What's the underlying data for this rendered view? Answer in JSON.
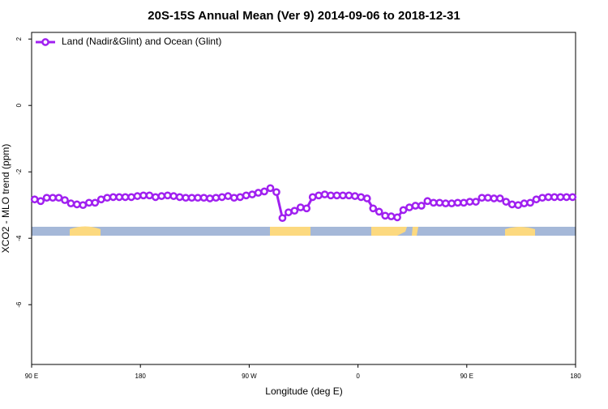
{
  "chart_data": {
    "type": "line",
    "title": "20S-15S Annual Mean (Ver 9)   2014-09-06 to 2018-12-31",
    "x_label": "Longitude (deg E)",
    "y_label": "XCO2 - MLO trend (ppm)",
    "legend_position": "top-left",
    "xlim": [
      90,
      540
    ],
    "xticks": [
      {
        "value": 90,
        "label": "90 E"
      },
      {
        "value": 180,
        "label": "180"
      },
      {
        "value": 270,
        "label": "90 W"
      },
      {
        "value": 360,
        "label": "0"
      },
      {
        "value": 450,
        "label": "90 E"
      },
      {
        "value": 540,
        "label": "180"
      }
    ],
    "ylim": [
      -7.8,
      2.2
    ],
    "yticks": [
      2,
      0,
      -2,
      -4,
      -6
    ],
    "x": [
      92.5,
      97.5,
      102.5,
      107.5,
      112.5,
      117.5,
      122.5,
      127.5,
      132.5,
      137.5,
      142.5,
      147.5,
      152.5,
      157.5,
      162.5,
      167.5,
      172.5,
      177.5,
      182.5,
      187.5,
      192.5,
      197.5,
      202.5,
      207.5,
      212.5,
      217.5,
      222.5,
      227.5,
      232.5,
      237.5,
      242.5,
      247.5,
      252.5,
      257.5,
      262.5,
      267.5,
      272.5,
      277.5,
      282.5,
      287.5,
      292.5,
      297.5,
      302.5,
      307.5,
      312.5,
      317.5,
      322.5,
      327.5,
      332.5,
      337.5,
      342.5,
      347.5,
      352.5,
      357.5,
      362.5,
      367.5,
      372.5,
      377.5,
      382.5,
      387.5,
      392.5,
      397.5,
      402.5,
      407.5,
      412.5,
      417.5,
      422.5,
      427.5,
      432.5,
      437.5,
      442.5,
      447.5,
      452.5,
      457.5,
      462.5,
      467.5,
      472.5,
      477.5,
      482.5,
      487.5,
      492.5,
      497.5,
      502.5,
      507.5,
      512.5,
      517.5,
      522.5,
      527.5,
      532.5,
      537.5
    ],
    "series": [
      {
        "name": "Land (Nadir&Glint) and Ocean (Glint)",
        "color": "#a020f0",
        "values": [
          -2.83,
          -2.88,
          -2.78,
          -2.78,
          -2.78,
          -2.85,
          -2.95,
          -2.98,
          -3.0,
          -2.93,
          -2.93,
          -2.83,
          -2.78,
          -2.76,
          -2.76,
          -2.76,
          -2.76,
          -2.73,
          -2.71,
          -2.71,
          -2.76,
          -2.73,
          -2.71,
          -2.73,
          -2.76,
          -2.78,
          -2.78,
          -2.78,
          -2.78,
          -2.8,
          -2.78,
          -2.76,
          -2.73,
          -2.78,
          -2.76,
          -2.71,
          -2.68,
          -2.63,
          -2.59,
          -2.49,
          -2.61,
          -3.39,
          -3.22,
          -3.17,
          -3.07,
          -3.1,
          -2.76,
          -2.71,
          -2.68,
          -2.71,
          -2.71,
          -2.71,
          -2.71,
          -2.73,
          -2.76,
          -2.8,
          -3.1,
          -3.2,
          -3.32,
          -3.34,
          -3.37,
          -3.15,
          -3.07,
          -3.02,
          -3.02,
          -2.88,
          -2.93,
          -2.93,
          -2.95,
          -2.95,
          -2.93,
          -2.93,
          -2.9,
          -2.9,
          -2.78,
          -2.78,
          -2.8,
          -2.8,
          -2.9,
          -2.98,
          -3.0,
          -2.95,
          -2.93,
          -2.83,
          -2.78,
          -2.76,
          -2.76,
          -2.76,
          -2.76,
          -2.76
        ]
      }
    ]
  }
}
